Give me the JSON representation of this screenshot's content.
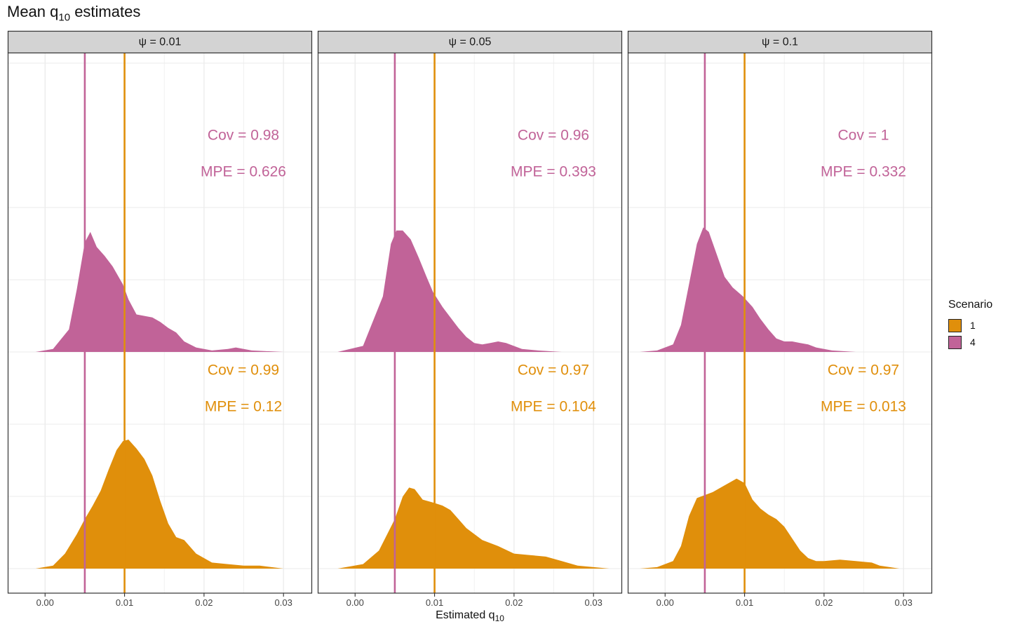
{
  "title": {
    "main": "Mean q",
    "sub": "10",
    "tail": " estimates"
  },
  "colors": {
    "s1": "#E08F0B",
    "s4": "#C16398",
    "strip_bg": "#D3D3D3",
    "grid": "#EBEBEB",
    "axis_text": "#444444"
  },
  "chart_data": {
    "type": "area",
    "subtype": "ridgeline-density",
    "facet_label_prefix": "ψ = ",
    "x_axis": {
      "label_main": "Estimated q",
      "label_sub": "10",
      "ticks": [
        0,
        0.01,
        0.02,
        0.03
      ],
      "tick_labels": [
        "0.00",
        "0.01",
        "0.02",
        "0.03"
      ]
    },
    "legend": {
      "title": "Scenario",
      "position": "right",
      "items": [
        {
          "label": "1",
          "color": "#E08F0B"
        },
        {
          "label": "4",
          "color": "#C16398"
        }
      ]
    },
    "reference_lines": [
      {
        "x": 0.005,
        "color": "#C16398"
      },
      {
        "x": 0.01,
        "color": "#E08F0B"
      }
    ],
    "panels": [
      {
        "psi": "0.01",
        "xlim": [
          -0.0047,
          0.0336
        ],
        "series": [
          {
            "scenario": "1",
            "color": "#E08F0B",
            "x": [
              -0.0012,
              0.001,
              0.0025,
              0.004,
              0.005,
              0.006,
              0.007,
              0.008,
              0.009,
              0.0098,
              0.0105,
              0.0115,
              0.0125,
              0.0135,
              0.0145,
              0.0155,
              0.0165,
              0.0175,
              0.019,
              0.021,
              0.023,
              0.025,
              0.027,
              0.03
            ],
            "y": [
              0,
              0.02,
              0.1,
              0.23,
              0.33,
              0.42,
              0.52,
              0.66,
              0.79,
              0.85,
              0.86,
              0.8,
              0.73,
              0.62,
              0.45,
              0.3,
              0.21,
              0.19,
              0.1,
              0.04,
              0.03,
              0.02,
              0.02,
              0
            ]
          },
          {
            "scenario": "4",
            "color": "#C16398",
            "x": [
              -0.0012,
              0.001,
              0.003,
              0.004,
              0.005,
              0.0057,
              0.0065,
              0.0075,
              0.0085,
              0.0098,
              0.0105,
              0.0115,
              0.0125,
              0.0135,
              0.0145,
              0.0155,
              0.0165,
              0.0175,
              0.019,
              0.021,
              0.023,
              0.024,
              0.026,
              0.03
            ],
            "y": [
              0,
              0.02,
              0.15,
              0.42,
              0.73,
              0.8,
              0.7,
              0.64,
              0.57,
              0.45,
              0.35,
              0.25,
              0.24,
              0.23,
              0.2,
              0.16,
              0.13,
              0.07,
              0.03,
              0.01,
              0.02,
              0.03,
              0.01,
              0
            ]
          }
        ],
        "annotations": [
          {
            "scenario": "4",
            "cov": "Cov = 0.98",
            "mpe": "MPE = 0.626"
          },
          {
            "scenario": "1",
            "cov": "Cov = 0.99",
            "mpe": "MPE = 0.12"
          }
        ]
      },
      {
        "psi": "0.05",
        "xlim": [
          -0.0047,
          0.0336
        ],
        "series": [
          {
            "scenario": "1",
            "color": "#E08F0B",
            "x": [
              -0.0022,
              0.001,
              0.003,
              0.005,
              0.006,
              0.0068,
              0.0075,
              0.0085,
              0.0098,
              0.011,
              0.012,
              0.013,
              0.014,
              0.016,
              0.018,
              0.02,
              0.022,
              0.024,
              0.026,
              0.028,
              0.032
            ],
            "y": [
              0,
              0.03,
              0.12,
              0.33,
              0.48,
              0.54,
              0.53,
              0.46,
              0.44,
              0.42,
              0.39,
              0.33,
              0.27,
              0.19,
              0.15,
              0.1,
              0.09,
              0.08,
              0.05,
              0.02,
              0
            ]
          },
          {
            "scenario": "4",
            "color": "#C16398",
            "x": [
              -0.0022,
              0.001,
              0.0035,
              0.0045,
              0.0052,
              0.006,
              0.007,
              0.008,
              0.009,
              0.0098,
              0.011,
              0.012,
              0.013,
              0.014,
              0.015,
              0.016,
              0.017,
              0.018,
              0.019,
              0.021,
              0.023,
              0.026,
              0.032
            ],
            "y": [
              0,
              0.04,
              0.37,
              0.72,
              0.81,
              0.81,
              0.75,
              0.63,
              0.5,
              0.4,
              0.3,
              0.23,
              0.16,
              0.1,
              0.06,
              0.05,
              0.06,
              0.07,
              0.06,
              0.02,
              0.01,
              0,
              0
            ]
          }
        ],
        "annotations": [
          {
            "scenario": "4",
            "cov": "Cov = 0.96",
            "mpe": "MPE = 0.393"
          },
          {
            "scenario": "1",
            "cov": "Cov = 0.97",
            "mpe": "MPE = 0.104"
          }
        ]
      },
      {
        "psi": "0.1",
        "xlim": [
          -0.0047,
          0.0336
        ],
        "series": [
          {
            "scenario": "1",
            "color": "#E08F0B",
            "x": [
              -0.0032,
              -0.001,
              0.001,
              0.002,
              0.003,
              0.004,
              0.005,
              0.006,
              0.007,
              0.008,
              0.009,
              0.01,
              0.011,
              0.012,
              0.013,
              0.014,
              0.015,
              0.016,
              0.017,
              0.018,
              0.019,
              0.02,
              0.022,
              0.024,
              0.026,
              0.027,
              0.0295
            ],
            "y": [
              0,
              0.01,
              0.05,
              0.15,
              0.35,
              0.47,
              0.49,
              0.51,
              0.54,
              0.57,
              0.6,
              0.57,
              0.46,
              0.4,
              0.36,
              0.33,
              0.28,
              0.2,
              0.12,
              0.07,
              0.05,
              0.05,
              0.06,
              0.05,
              0.04,
              0.02,
              0
            ]
          },
          {
            "scenario": "4",
            "color": "#C16398",
            "x": [
              -0.0032,
              -0.001,
              0.001,
              0.002,
              0.003,
              0.004,
              0.0048,
              0.0055,
              0.0065,
              0.0075,
              0.0085,
              0.0098,
              0.011,
              0.012,
              0.013,
              0.014,
              0.015,
              0.016,
              0.017,
              0.018,
              0.019,
              0.021,
              0.024,
              0.0295
            ],
            "y": [
              0,
              0.01,
              0.05,
              0.18,
              0.45,
              0.72,
              0.83,
              0.8,
              0.65,
              0.5,
              0.43,
              0.37,
              0.3,
              0.22,
              0.15,
              0.09,
              0.07,
              0.07,
              0.06,
              0.05,
              0.03,
              0.01,
              0,
              0
            ]
          }
        ],
        "annotations": [
          {
            "scenario": "4",
            "cov": "Cov = 1",
            "mpe": "MPE = 0.332"
          },
          {
            "scenario": "1",
            "cov": "Cov = 0.97",
            "mpe": "MPE = 0.013"
          }
        ]
      }
    ]
  }
}
